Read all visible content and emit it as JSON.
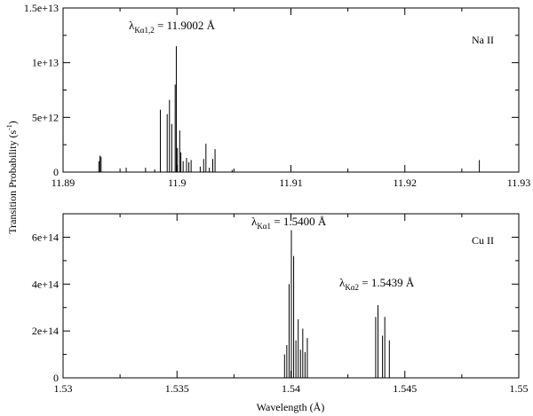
{
  "chart_data": [
    {
      "type": "bar",
      "panel_label": "Na II",
      "xlim": [
        11.89,
        11.93
      ],
      "ylim": [
        0,
        15000000000000.0
      ],
      "x_ticks": [
        "11.89",
        "11.9",
        "11.91",
        "11.92",
        "11.93"
      ],
      "y_ticks": [
        "0",
        "5e+12",
        "1e+13",
        "1.5e+13"
      ],
      "annotation": {
        "main": "λ",
        "sub": "Kα1,2",
        "value": " = 11.9002 Å"
      },
      "x": [
        11.8931,
        11.8932,
        11.8933,
        11.8955,
        11.8972,
        11.898,
        11.8985,
        11.8991,
        11.8993,
        11.8995,
        11.8998,
        11.8999,
        11.9,
        11.9002,
        11.9003,
        11.9005,
        11.9008,
        11.901,
        11.9012,
        11.902,
        11.9023,
        11.9025,
        11.9028,
        11.9031,
        11.9033,
        11.9048,
        11.9265
      ],
      "values": [
        1000000000000.0,
        1500000000000.0,
        1400000000000.0,
        400000000000.0,
        400000000000.0,
        250000000000.0,
        5700000000000.0,
        5300000000000.0,
        6600000000000.0,
        4400000000000.0,
        8000000000000.0,
        11500000000000.0,
        2200000000000.0,
        3800000000000.0,
        1800000000000.0,
        1000000000000.0,
        1300000000000.0,
        900000000000.0,
        1100000000000.0,
        500000000000.0,
        1200000000000.0,
        2600000000000.0,
        400000000000.0,
        1200000000000.0,
        2100000000000.0,
        200000000000.0,
        1100000000000.0
      ]
    },
    {
      "type": "bar",
      "panel_label": "Cu II",
      "xlim": [
        1.53,
        1.55
      ],
      "ylim": [
        0,
        700000000000000.0
      ],
      "x_ticks": [
        "1.53",
        "1.535",
        "1.54",
        "1.545",
        "1.55"
      ],
      "y_ticks": [
        "0",
        "2e+14",
        "4e+14",
        "6e+14"
      ],
      "xlabel": "Wavelength (Å)",
      "annotations": [
        {
          "main": "λ",
          "sub": "Kα1",
          "value": " = 1.5400 Å"
        },
        {
          "main": "λ",
          "sub": "Kα2",
          "value": " = 1.5439 Å"
        }
      ],
      "x": [
        1.5397,
        1.5398,
        1.5399,
        1.54,
        1.5401,
        1.5402,
        1.5403,
        1.5404,
        1.5405,
        1.5406,
        1.5407,
        1.5437,
        1.5438,
        1.544,
        1.5441,
        1.5443
      ],
      "values": [
        100000000000000.0,
        140000000000000.0,
        400000000000000.0,
        630000000000000.0,
        520000000000000.0,
        160000000000000.0,
        250000000000000.0,
        120000000000000.0,
        210000000000000.0,
        110000000000000.0,
        170000000000000.0,
        260000000000000.0,
        310000000000000.0,
        180000000000000.0,
        260000000000000.0,
        160000000000000.0
      ]
    }
  ],
  "shared": {
    "ylabel_main": "Transition Probability (s",
    "ylabel_sup": "-1",
    "ylabel_end": ")"
  }
}
